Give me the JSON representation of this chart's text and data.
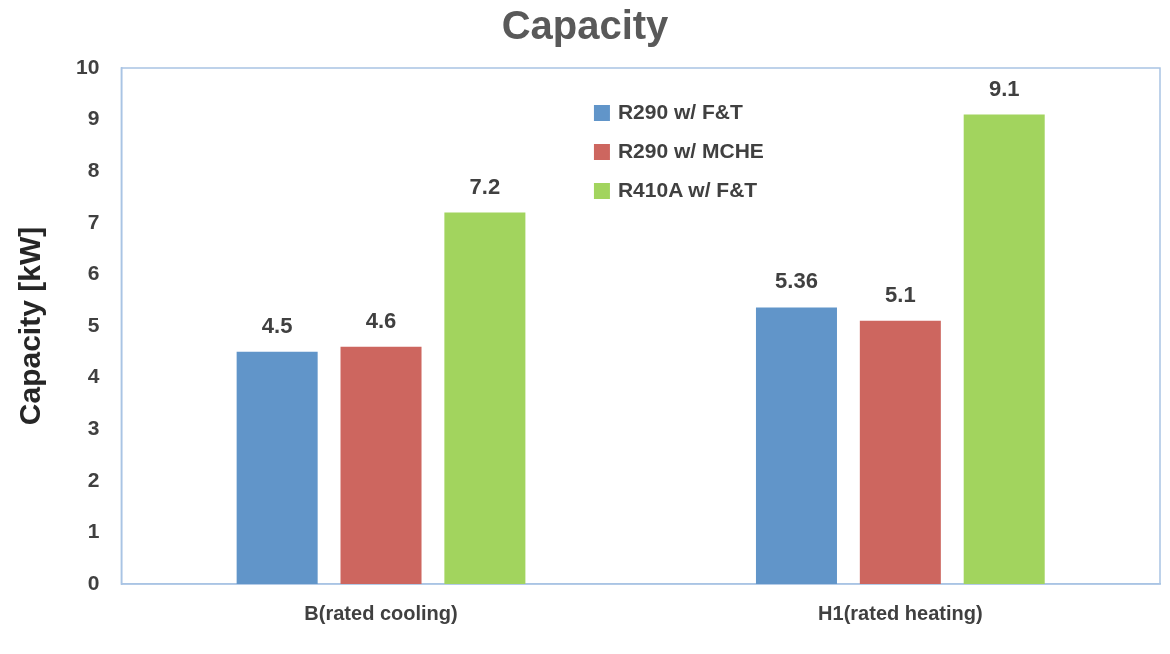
{
  "chart_data": {
    "type": "bar",
    "title": "Capacity",
    "ylabel": "Capacity [kW]",
    "categories": [
      "B(rated cooling)",
      "H1(rated heating)"
    ],
    "series": [
      {
        "name": "R290 w/ F&T",
        "color": "#6195c9",
        "values": [
          4.5,
          5.36
        ]
      },
      {
        "name": "R290 w/ MCHE",
        "color": "#cd665f",
        "values": [
          4.6,
          5.1
        ]
      },
      {
        "name": "R410A w/ F&T",
        "color": "#a2d45e",
        "values": [
          7.2,
          9.1
        ]
      }
    ],
    "ylim": [
      0,
      10
    ],
    "yticks": [
      0,
      1,
      2,
      3,
      4,
      5,
      6,
      7,
      8,
      9,
      10
    ],
    "grid": false,
    "legend": "top",
    "data_labels": true
  }
}
